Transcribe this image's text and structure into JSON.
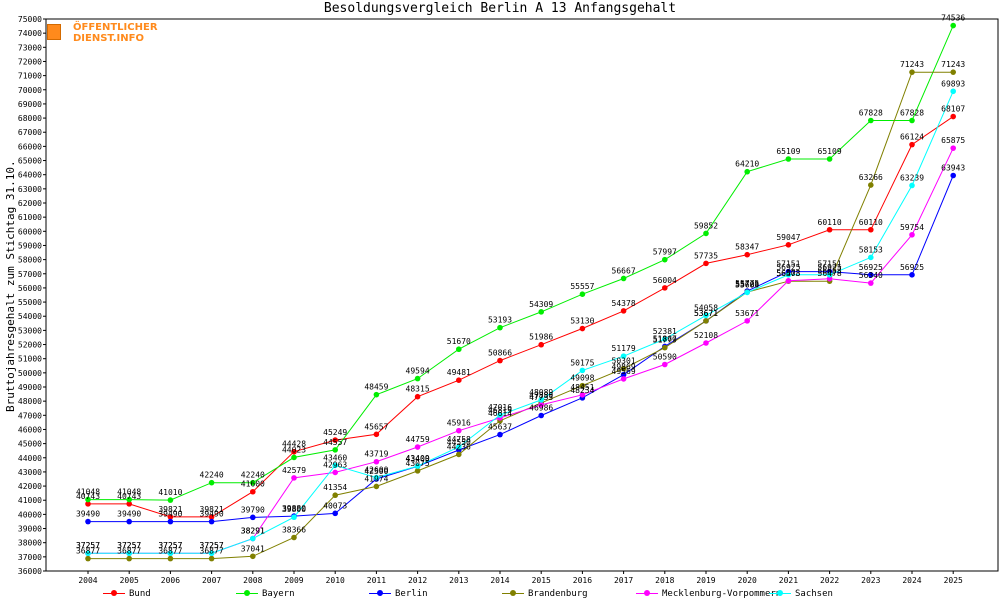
{
  "chart_data": {
    "type": "line",
    "title": "Besoldungsvergleich Berlin A 13 Anfangsgehalt",
    "xlabel": "",
    "ylabel": "Bruttojahresgehalt zum Stichtag 31.10.",
    "x": [
      "2004",
      "2005",
      "2006",
      "2007",
      "2008",
      "2009",
      "2010",
      "2011",
      "2012",
      "2013",
      "2014",
      "2015",
      "2016",
      "2017",
      "2018",
      "2019",
      "2020",
      "2021",
      "2022",
      "2023",
      "2024",
      "2025"
    ],
    "ylim": [
      36000,
      75000
    ],
    "yticks": [
      36000,
      37000,
      38000,
      39000,
      40000,
      41000,
      42000,
      43000,
      44000,
      45000,
      46000,
      47000,
      48000,
      49000,
      50000,
      51000,
      52000,
      53000,
      54000,
      55000,
      56000,
      57000,
      58000,
      59000,
      60000,
      61000,
      62000,
      63000,
      64000,
      65000,
      66000,
      67000,
      68000,
      69000,
      70000,
      71000,
      72000,
      73000,
      74000,
      75000
    ],
    "grid": false,
    "legend_position": "bottom",
    "series": [
      {
        "name": "Bund",
        "color": "#ff0000",
        "values": [
          40743,
          40743,
          39821,
          39821,
          41600,
          44428,
          45249,
          45657,
          48315,
          49481,
          50866,
          51986,
          53130,
          54378,
          56004,
          57735,
          58347,
          59047,
          60110,
          60110,
          66124,
          68107
        ]
      },
      {
        "name": "Bayern",
        "color": "#00ee00",
        "values": [
          41048,
          41048,
          41010,
          42240,
          42240,
          44023,
          44557,
          48459,
          49594,
          51670,
          53193,
          54309,
          55557,
          56667,
          57997,
          59852,
          64210,
          65109,
          65109,
          67828,
          67828,
          74536
        ]
      },
      {
        "name": "Berlin",
        "color": "#0000ff",
        "values": [
          39490,
          39490,
          39490,
          39490,
          39790,
          39880,
          40073,
          42500,
          43400,
          44550,
          45637,
          46986,
          48234,
          49869,
          51867,
          53671,
          55775,
          57151,
          57151,
          56925,
          56925,
          63943
        ]
      },
      {
        "name": "Brandenburg",
        "color": "#808000",
        "values": [
          36877,
          36877,
          36877,
          36877,
          37041,
          38366,
          41354,
          41974,
          43075,
          44236,
          46614,
          47880,
          49098,
          50301,
          51779,
          53671,
          55706,
          56478,
          56478,
          63266,
          71243,
          71243
        ]
      },
      {
        "name": "Mecklenburg-Vorpommern",
        "color": "#ff00ff",
        "values": [
          37257,
          37257,
          37257,
          37257,
          38291,
          42579,
          42963,
          43719,
          44759,
          45916,
          46819,
          47733,
          48451,
          49569,
          50590,
          52108,
          53671,
          56503,
          56653,
          56340,
          59754,
          65875
        ]
      },
      {
        "name": "Sachsen",
        "color": "#00ffff",
        "values": [
          37257,
          37257,
          37257,
          37257,
          38291,
          39800,
          43460,
          42600,
          43409,
          44758,
          47016,
          48089,
          50175,
          51179,
          52381,
          54058,
          55683,
          56925,
          56925,
          58153,
          63239,
          69893
        ]
      }
    ]
  },
  "logo": {
    "line1": "ÖFFENTLICHER",
    "line2": "DIENST.INFO"
  }
}
